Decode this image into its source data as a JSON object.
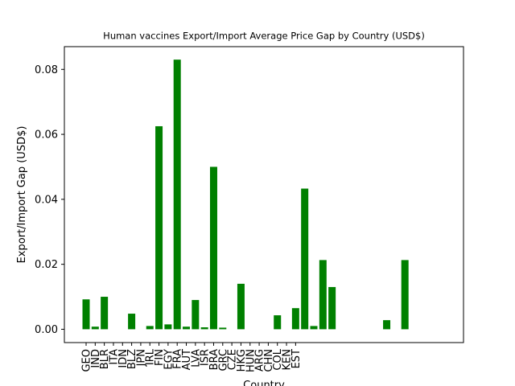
{
  "chart_data": {
    "type": "bar",
    "title": "Human vaccines Export/Import Average Price Gap by Country (USD$)",
    "xlabel": "Country",
    "ylabel": "Export/Import Gap (USD$)",
    "ylim": [
      -0.0041,
      0.087
    ],
    "yticks": [
      0.0,
      0.02,
      0.04,
      0.06,
      0.08
    ],
    "ytick_labels": [
      "0.00",
      "0.02",
      "0.04",
      "0.06",
      "0.08"
    ],
    "bar_color": "#008000",
    "grid": false,
    "categories": [
      "GEO",
      "IND",
      "BLR",
      "ITA",
      "IDN",
      "BLZ",
      "JPN",
      "IRL",
      "FIN",
      "EGY",
      "FRA",
      "AUT",
      "LVA",
      "ISR",
      "BRA",
      "GRC",
      "CZE",
      "HKG",
      "HUN",
      "ARG",
      "CHN",
      "COL",
      "KEN",
      "EST",
      "",
      "",
      "",
      "",
      "",
      "",
      "",
      "",
      "",
      "",
      "",
      "",
      ""
    ],
    "values": [
      0.0092,
      0.0008,
      0.01,
      0,
      0,
      0.0048,
      0,
      0.001,
      0.0625,
      0.0015,
      0.083,
      0.0008,
      0.009,
      0.0006,
      0.05,
      0.0005,
      0,
      0.014,
      0,
      0,
      0,
      0.0043,
      0,
      0.0065,
      0.0433,
      0.001,
      0.0213,
      0.013,
      0,
      0,
      0,
      0,
      0,
      0.0028,
      0,
      0.0213,
      0
    ]
  }
}
